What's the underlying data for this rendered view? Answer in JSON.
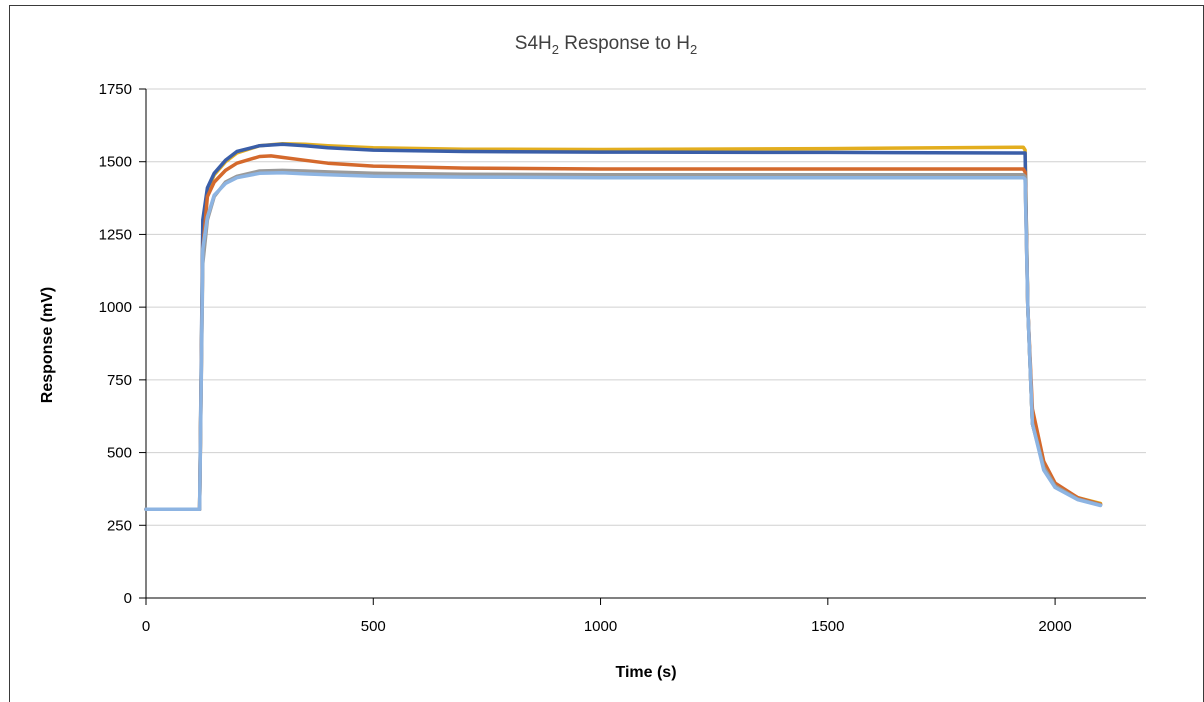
{
  "chart_data": {
    "type": "line",
    "title": {
      "base": "S4H",
      "base_sub": "2",
      "middle": " Response to  H",
      "end_sub": "2"
    },
    "xlabel": "Time (s)",
    "ylabel": "Response (mV)",
    "xlim": [
      0,
      2200
    ],
    "ylim": [
      0,
      1750
    ],
    "xticks": [
      0,
      500,
      1000,
      1500,
      2000
    ],
    "yticks": [
      0,
      250,
      500,
      750,
      1000,
      1250,
      1500,
      1750
    ],
    "grid": "horizontal",
    "legend": "none",
    "series": [
      {
        "color": "#E3AE1F",
        "x": [
          0,
          118,
          125,
          135,
          150,
          175,
          200,
          250,
          300,
          350,
          400,
          500,
          700,
          1000,
          1500,
          1930,
          1934,
          1940,
          1950,
          1975,
          2000,
          2050,
          2100
        ],
        "y": [
          305,
          305,
          1250,
          1400,
          1455,
          1500,
          1530,
          1555,
          1562,
          1560,
          1555,
          1548,
          1543,
          1542,
          1545,
          1550,
          1540,
          1000,
          600,
          450,
          390,
          345,
          325
        ]
      },
      {
        "color": "#3A5EA8",
        "x": [
          0,
          118,
          125,
          135,
          150,
          175,
          200,
          250,
          300,
          350,
          400,
          500,
          700,
          1000,
          1500,
          1930,
          1934,
          1940,
          1950,
          1975,
          2000,
          2050,
          2100
        ],
        "y": [
          305,
          305,
          1300,
          1410,
          1460,
          1505,
          1535,
          1555,
          1560,
          1555,
          1548,
          1540,
          1535,
          1533,
          1532,
          1530,
          1530,
          1000,
          600,
          450,
          385,
          340,
          320
        ]
      },
      {
        "color": "#D4692C",
        "x": [
          0,
          118,
          125,
          135,
          150,
          175,
          200,
          250,
          275,
          300,
          350,
          400,
          500,
          700,
          1000,
          1500,
          1930,
          1934,
          1940,
          1950,
          1975,
          2000,
          2050,
          2100
        ],
        "y": [
          305,
          305,
          1200,
          1380,
          1430,
          1470,
          1495,
          1518,
          1520,
          1515,
          1505,
          1495,
          1485,
          1478,
          1475,
          1475,
          1475,
          1465,
          1000,
          650,
          470,
          395,
          345,
          322
        ]
      },
      {
        "color": "#9A9A9A",
        "x": [
          0,
          118,
          125,
          135,
          150,
          175,
          200,
          250,
          300,
          350,
          400,
          500,
          700,
          1000,
          1500,
          1930,
          1934,
          1940,
          1950,
          1975,
          2000,
          2050,
          2100
        ],
        "y": [
          305,
          305,
          1150,
          1300,
          1380,
          1430,
          1450,
          1468,
          1470,
          1468,
          1465,
          1460,
          1457,
          1455,
          1455,
          1455,
          1450,
          1000,
          600,
          450,
          385,
          340,
          320
        ]
      },
      {
        "color": "#8DB4E2",
        "x": [
          0,
          118,
          125,
          135,
          150,
          175,
          200,
          250,
          300,
          350,
          400,
          500,
          700,
          1000,
          1500,
          1930,
          1934,
          1940,
          1950,
          1975,
          2000,
          2050,
          2100
        ],
        "y": [
          305,
          305,
          1200,
          1310,
          1385,
          1425,
          1445,
          1460,
          1462,
          1458,
          1455,
          1450,
          1447,
          1445,
          1445,
          1445,
          1440,
          1000,
          600,
          440,
          380,
          338,
          318
        ]
      }
    ]
  }
}
